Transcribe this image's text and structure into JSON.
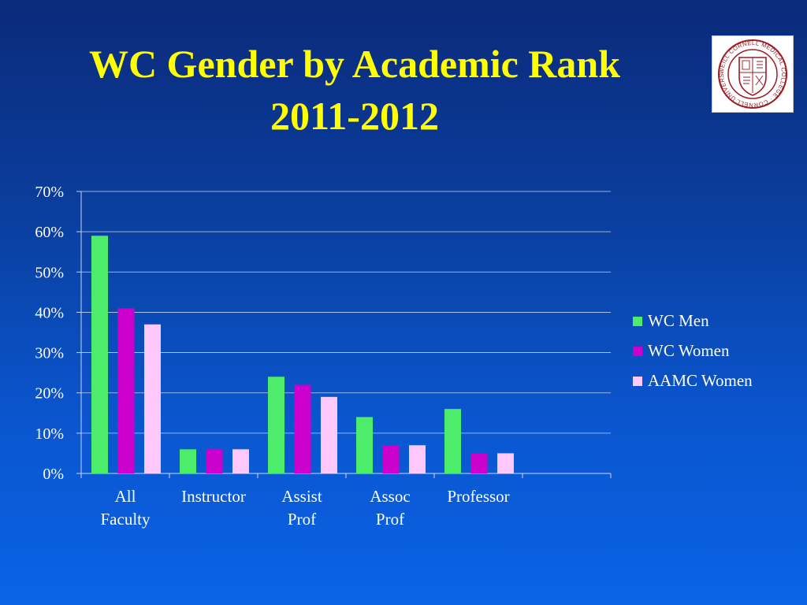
{
  "slide": {
    "title_line1": "WC Gender by Academic Rank",
    "title_line2": "2011-2012",
    "logo": {
      "name": "Cornell University medical college seal",
      "ring_text": "WEILL CORNELL MEDICAL COLLEGE · CORNELL UNIVERSITY",
      "colors": {
        "ring": "#9c1c24",
        "background": "#ffffff"
      }
    }
  },
  "chart_data": {
    "type": "bar",
    "title": "",
    "xlabel": "",
    "ylabel": "",
    "categories": [
      [
        "All",
        "Faculty"
      ],
      [
        "Instructor"
      ],
      [
        "Assist",
        "Prof"
      ],
      [
        "Assoc",
        "Prof"
      ],
      [
        "Professor"
      ]
    ],
    "series": [
      {
        "name": "WC Men",
        "color": "#4dec6a",
        "values": [
          59,
          6,
          24,
          14,
          16
        ]
      },
      {
        "name": "WC Women",
        "color": "#cc00cc",
        "values": [
          41,
          6,
          22,
          7,
          5
        ]
      },
      {
        "name": "AAMC Women",
        "color": "#ffc8ff",
        "values": [
          37,
          6,
          19,
          7,
          5
        ]
      }
    ],
    "ylim": [
      0,
      70
    ],
    "yticks": [
      0,
      10,
      20,
      30,
      40,
      50,
      60,
      70
    ],
    "ytick_labels": [
      "0%",
      "10%",
      "20%",
      "30%",
      "40%",
      "50%",
      "60%",
      "70%"
    ],
    "grid": true,
    "legend_position": "right",
    "colors": {
      "axis_text": "#ffffff",
      "grid": "#c8d4ee"
    }
  }
}
